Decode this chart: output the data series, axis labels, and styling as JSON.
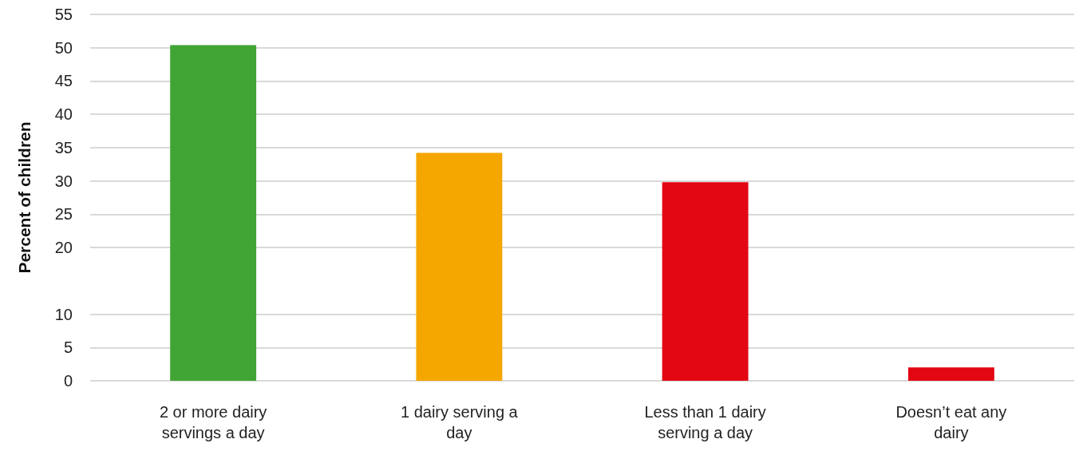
{
  "chart_data": {
    "type": "bar",
    "ylabel": "Percent of children",
    "categories": [
      "2 or more dairy servings a day",
      "1 dairy serving a day",
      "Less than 1 dairy serving a day",
      "Doesn’t eat any dairy"
    ],
    "values": [
      50.4,
      34.2,
      29.8,
      2
    ],
    "colors": [
      "#41a535",
      "#f5a700",
      "#e30613",
      "#e30613"
    ],
    "ylim": [
      0,
      55
    ],
    "yticks": [
      0,
      5,
      10,
      20,
      25,
      30,
      35,
      40,
      45,
      50,
      55
    ],
    "grid": "y"
  }
}
